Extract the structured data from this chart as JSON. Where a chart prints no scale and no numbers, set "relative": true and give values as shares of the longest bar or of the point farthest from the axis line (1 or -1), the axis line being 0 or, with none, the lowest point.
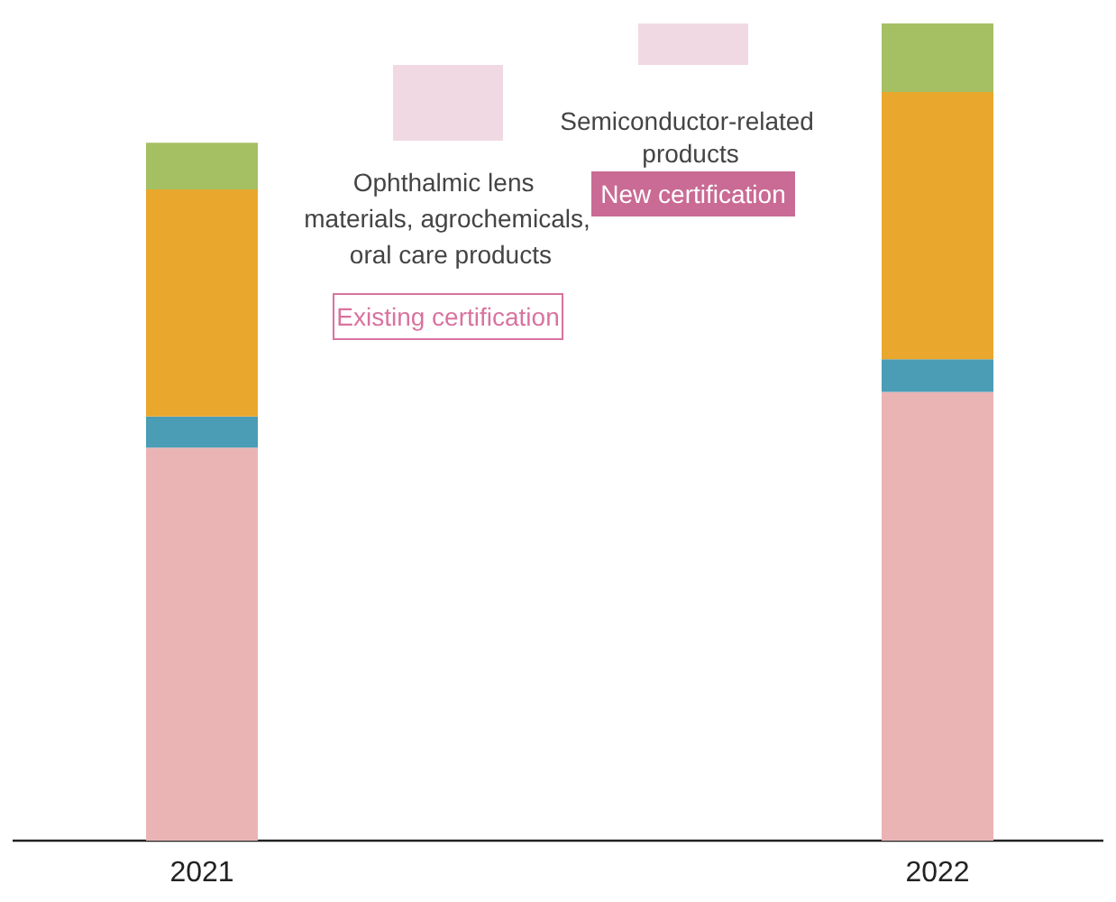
{
  "chart_data": {
    "type": "bar",
    "stacked": true,
    "relative": true,
    "categories": [
      "2021",
      "2022"
    ],
    "series": [
      {
        "color": "#eab4b5",
        "values": [
          0.481,
          0.549
        ]
      },
      {
        "color": "#4a9db5",
        "values": [
          0.038,
          0.04
        ]
      },
      {
        "color": "#e9a82d",
        "values": [
          0.278,
          0.327
        ]
      },
      {
        "color": "#a5bf63",
        "values": [
          0.057,
          0.084
        ]
      }
    ],
    "annotations": [
      "Ophthalmic lens materials, agrochemicals, oral care products",
      "Semiconductor-related products",
      "New certification",
      "Existing certification"
    ],
    "data_labels": false
  }
}
